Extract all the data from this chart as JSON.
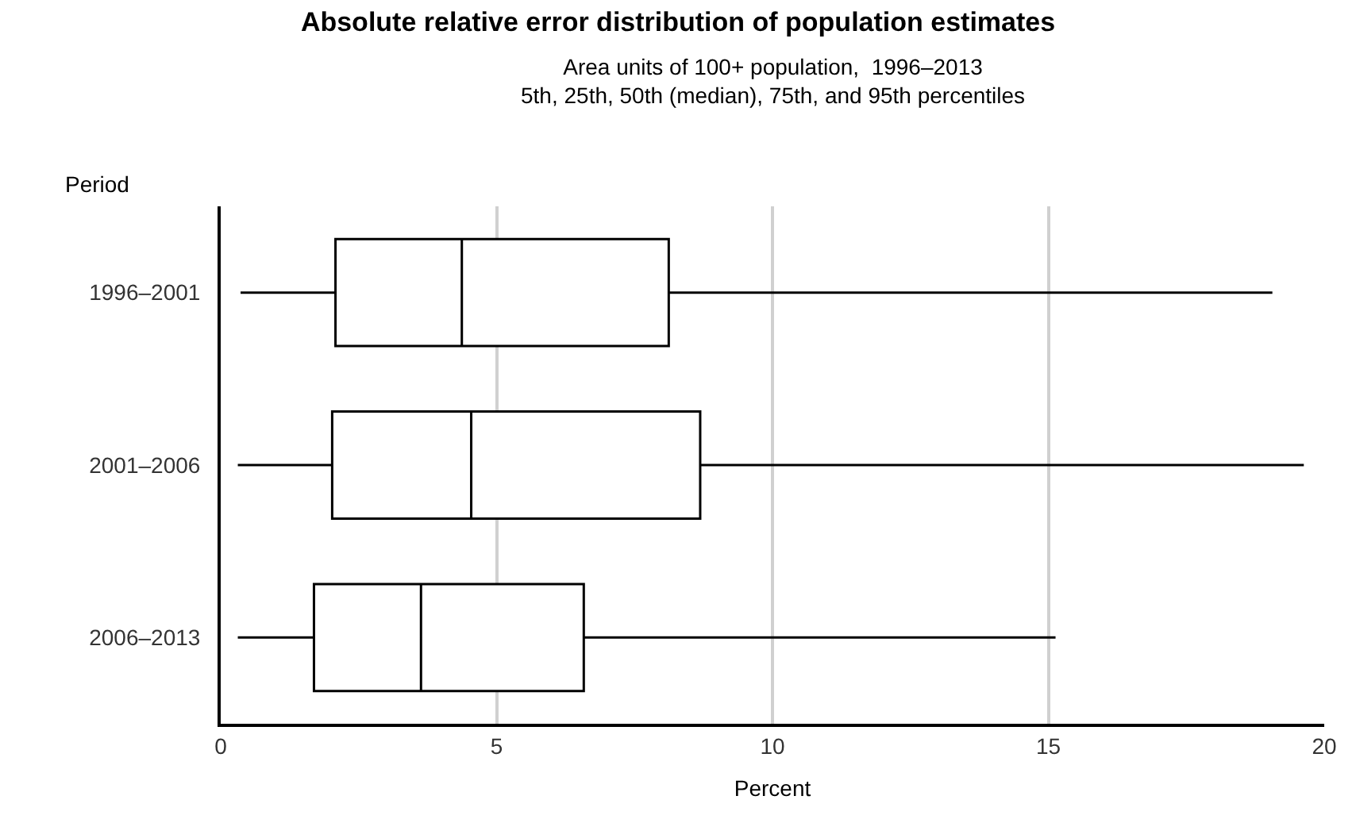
{
  "chart_data": {
    "type": "box",
    "title": "Absolute relative error distribution of population estimates",
    "subtitle": "Area units of 100+ population,  1996–2013\n5th, 25th, 50th (median), 75th, and 95th percentiles",
    "xlabel": "Percent",
    "ylabel": "Period",
    "orientation": "horizontal",
    "categories": [
      "1996–2001",
      "2001–2006",
      "2006–2013"
    ],
    "boxes": [
      {
        "low": 0.36,
        "q1": 2.08,
        "median": 4.37,
        "q3": 8.12,
        "high": 19.06
      },
      {
        "low": 0.31,
        "q1": 2.02,
        "median": 4.54,
        "q3": 8.69,
        "high": 19.63
      },
      {
        "low": 0.31,
        "q1": 1.69,
        "median": 3.63,
        "q3": 6.58,
        "high": 15.13
      }
    ],
    "xlim": [
      0,
      20
    ],
    "xticks": [
      0,
      5,
      10,
      15,
      20
    ],
    "grid": "x",
    "color": "#000000"
  }
}
